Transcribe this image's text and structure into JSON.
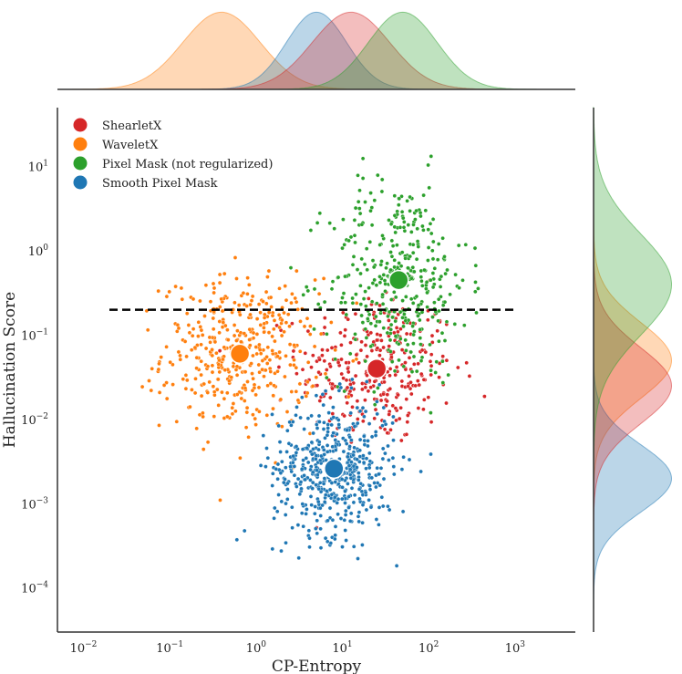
{
  "chart_data": {
    "type": "scatter",
    "xlabel": "CP-Entropy",
    "ylabel": "Hallucination Score",
    "xscale": "log",
    "yscale": "log",
    "xlim": [
      0.005,
      5000
    ],
    "ylim": [
      3e-05,
      50
    ],
    "x_ticks": [
      {
        "label_base": "10",
        "label_exp": "−2"
      },
      {
        "label_base": "10",
        "label_exp": "−1"
      },
      {
        "label_base": "10",
        "label_exp": "0"
      },
      {
        "label_base": "10",
        "label_exp": "1"
      },
      {
        "label_base": "10",
        "label_exp": "2"
      },
      {
        "label_base": "10",
        "label_exp": "3"
      }
    ],
    "y_ticks": [
      {
        "label_base": "10",
        "label_exp": "−4"
      },
      {
        "label_base": "10",
        "label_exp": "−3"
      },
      {
        "label_base": "10",
        "label_exp": "−2"
      },
      {
        "label_base": "10",
        "label_exp": "−1"
      },
      {
        "label_base": "10",
        "label_exp": "0"
      },
      {
        "label_base": "10",
        "label_exp": "1"
      }
    ],
    "threshold_line": {
      "y": 0.2,
      "x_range": [
        0.02,
        1000
      ],
      "style": "dashed",
      "color": "#000000"
    },
    "legend_position": "top-left",
    "marginals": {
      "top": "kde of x per series",
      "right": "kde of y per series"
    },
    "series": [
      {
        "name": "ShearletX",
        "color": "#d62728",
        "center": {
          "x": 25,
          "y": 0.04
        },
        "spread_log10": {
          "x": 0.45,
          "y": 0.45
        },
        "n_points": 320,
        "kde_x_peak_log10": 1.1,
        "kde_y_peak_log10": -1.6
      },
      {
        "name": "WaveletX",
        "color": "#ff7f0e",
        "center": {
          "x": 0.65,
          "y": 0.06
        },
        "spread_log10": {
          "x": 0.45,
          "y": 0.45
        },
        "n_points": 420,
        "kde_x_peak_log10": -0.4,
        "kde_y_peak_log10": -1.3
      },
      {
        "name": "Pixel Mask (not regularized)",
        "color": "#2ca02c",
        "center": {
          "x": 45,
          "y": 0.45
        },
        "spread_log10": {
          "x": 0.4,
          "y": 0.6
        },
        "n_points": 380,
        "kde_x_peak_log10": 1.7,
        "kde_y_peak_log10": -0.4
      },
      {
        "name": "Smooth Pixel Mask",
        "color": "#1f77b4",
        "center": {
          "x": 8,
          "y": 0.0026
        },
        "spread_log10": {
          "x": 0.35,
          "y": 0.4
        },
        "n_points": 520,
        "kde_x_peak_log10": 0.7,
        "kde_y_peak_log10": -2.7
      }
    ]
  }
}
